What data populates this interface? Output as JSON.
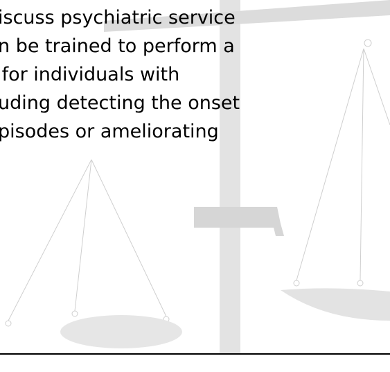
{
  "body": {
    "lines": [
      "iscuss psychiatric service",
      "n be trained to perform a",
      " for individuals with",
      "uding detecting the onset",
      "pisodes or ameliorating"
    ]
  }
}
